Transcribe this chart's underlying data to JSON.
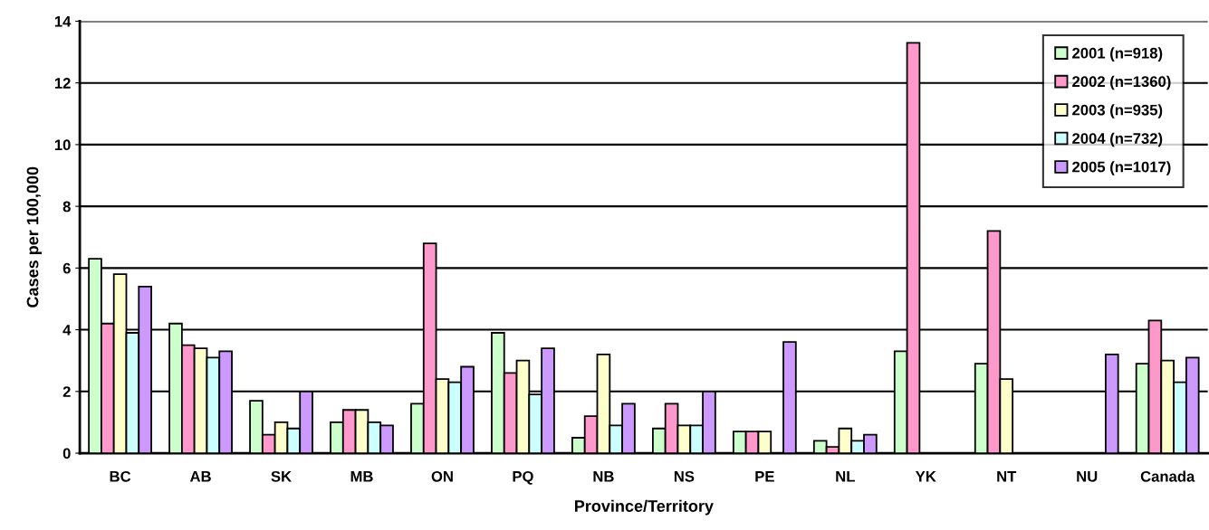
{
  "chart_data": {
    "type": "bar",
    "xlabel": "Province/Territory",
    "ylabel": "Cases per 100,000",
    "categories": [
      "BC",
      "AB",
      "SK",
      "MB",
      "ON",
      "PQ",
      "NB",
      "NS",
      "PE",
      "NL",
      "YK",
      "NT",
      "NU",
      "Canada"
    ],
    "series": [
      {
        "name": "2001 (n=918)",
        "color": "#ccffcc",
        "values": [
          6.3,
          4.2,
          1.7,
          1.0,
          1.6,
          3.9,
          0.5,
          0.8,
          0.7,
          0.4,
          3.3,
          2.9,
          null,
          2.9
        ]
      },
      {
        "name": "2002 (n=1360)",
        "color": "#ff99cc",
        "values": [
          4.2,
          3.5,
          0.6,
          1.4,
          6.8,
          2.6,
          1.2,
          1.6,
          0.7,
          0.2,
          13.3,
          7.2,
          null,
          4.3
        ]
      },
      {
        "name": "2003 (n=935)",
        "color": "#ffffcc",
        "values": [
          5.8,
          3.4,
          1.0,
          1.4,
          2.4,
          3.0,
          3.2,
          0.9,
          0.7,
          0.8,
          null,
          2.4,
          null,
          3.0
        ]
      },
      {
        "name": "2004 (n=732)",
        "color": "#ccffff",
        "values": [
          3.9,
          3.1,
          0.8,
          1.0,
          2.3,
          1.9,
          0.9,
          0.9,
          null,
          0.4,
          null,
          null,
          null,
          2.3
        ]
      },
      {
        "name": "2005 (n=1017)",
        "color": "#cc99ff",
        "values": [
          5.4,
          3.3,
          2.0,
          0.9,
          2.8,
          3.4,
          1.6,
          2.0,
          3.6,
          0.6,
          null,
          null,
          3.2,
          3.1
        ]
      }
    ],
    "ylim": [
      0,
      14
    ],
    "yticks": [
      0,
      2,
      4,
      6,
      8,
      10,
      12,
      14
    ],
    "grid": "y",
    "legend": "top right"
  }
}
